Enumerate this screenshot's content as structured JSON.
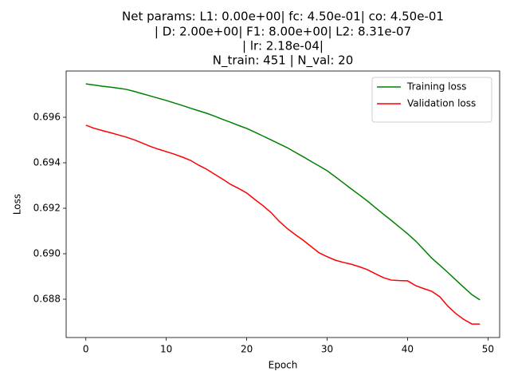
{
  "chart_data": {
    "type": "line",
    "title": [
      "Net params: L1: 0.00e+00| fc: 4.50e-01| co: 4.50e-01",
      "| D: 2.00e+00| F1: 8.00e+00| L2: 8.31e-07",
      "| lr: 2.18e-04|",
      "N_train: 451 | N_val: 20"
    ],
    "x_label": "Epoch",
    "y_label": "Loss",
    "x": [
      0,
      1,
      2,
      3,
      4,
      5,
      6,
      7,
      8,
      9,
      10,
      11,
      12,
      13,
      14,
      15,
      16,
      17,
      18,
      19,
      20,
      21,
      22,
      23,
      24,
      25,
      26,
      27,
      28,
      29,
      30,
      31,
      32,
      33,
      34,
      35,
      36,
      37,
      38,
      39,
      40,
      41,
      42,
      43,
      44,
      45,
      46,
      47,
      48,
      49
    ],
    "series": [
      {
        "name": "Training loss",
        "color": "#008000",
        "values": [
          0.69747,
          0.69742,
          0.69737,
          0.69733,
          0.69728,
          0.69723,
          0.69714,
          0.69704,
          0.69694,
          0.69684,
          0.69674,
          0.69663,
          0.69652,
          0.6964,
          0.69629,
          0.69618,
          0.69605,
          0.69591,
          0.69578,
          0.69564,
          0.69551,
          0.69535,
          0.69518,
          0.69501,
          0.69484,
          0.69467,
          0.69447,
          0.69427,
          0.69406,
          0.69386,
          0.69365,
          0.69339,
          0.69312,
          0.69285,
          0.69259,
          0.69232,
          0.69203,
          0.69174,
          0.69146,
          0.69117,
          0.69088,
          0.69056,
          0.69019,
          0.68981,
          0.6895,
          0.68918,
          0.68885,
          0.68852,
          0.6882,
          0.68797
        ]
      },
      {
        "name": "Validation loss",
        "color": "#ff0000",
        "values": [
          0.69565,
          0.69552,
          0.69542,
          0.69533,
          0.69523,
          0.69513,
          0.69501,
          0.69487,
          0.69472,
          0.6946,
          0.69449,
          0.69438,
          0.69425,
          0.69411,
          0.6939,
          0.69372,
          0.6935,
          0.69328,
          0.69305,
          0.69287,
          0.69267,
          0.69239,
          0.69212,
          0.69182,
          0.69144,
          0.69112,
          0.69085,
          0.6906,
          0.69032,
          0.69004,
          0.68987,
          0.68972,
          0.68962,
          0.68954,
          0.68943,
          0.6893,
          0.68912,
          0.68895,
          0.68884,
          0.68882,
          0.68881,
          0.6886,
          0.68847,
          0.68835,
          0.68811,
          0.6877,
          0.68737,
          0.68711,
          0.68691,
          0.68691
        ]
      }
    ],
    "xlim": [
      -2.45,
      51.45
    ],
    "xticks": [
      0,
      10,
      20,
      30,
      40,
      50
    ],
    "ylim": [
      0.686316,
      0.698035
    ],
    "yticks": [
      0.688,
      {
        "value": 0.69,
        "label": "0.690"
      },
      0.692,
      0.694,
      0.696
    ],
    "grid": false,
    "legend": "upper right"
  }
}
